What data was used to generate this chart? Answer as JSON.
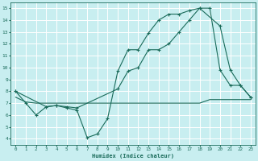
{
  "xlabel": "Humidex (Indice chaleur)",
  "bg_color": "#c8eef0",
  "line_color": "#1a6b5a",
  "grid_color": "#ffffff",
  "xlim": [
    -0.5,
    23.5
  ],
  "ylim": [
    3.5,
    15.5
  ],
  "xticks": [
    0,
    1,
    2,
    3,
    4,
    5,
    6,
    7,
    8,
    9,
    10,
    11,
    12,
    13,
    14,
    15,
    16,
    17,
    18,
    19,
    20,
    21,
    22,
    23
  ],
  "yticks": [
    4,
    5,
    6,
    7,
    8,
    9,
    10,
    11,
    12,
    13,
    14,
    15
  ],
  "line1_x": [
    0,
    1,
    2,
    3,
    4,
    5,
    6,
    7,
    8,
    9,
    10,
    11,
    12,
    13,
    14,
    15,
    16,
    17,
    18,
    19,
    20,
    21,
    22,
    23
  ],
  "line1_y": [
    8.0,
    7.0,
    6.0,
    6.7,
    6.8,
    6.6,
    6.4,
    4.1,
    4.4,
    5.7,
    9.7,
    11.5,
    11.5,
    12.9,
    14.0,
    14.5,
    14.5,
    14.8,
    15.0,
    15.0,
    9.8,
    8.5,
    8.5,
    7.5
  ],
  "line2_x": [
    0,
    1,
    2,
    3,
    4,
    5,
    6,
    7,
    8,
    9,
    10,
    11,
    12,
    13,
    14,
    15,
    16,
    17,
    18,
    19,
    20,
    21,
    22,
    23
  ],
  "line2_y": [
    7.5,
    7.1,
    7.0,
    7.0,
    7.0,
    7.0,
    7.0,
    7.0,
    7.0,
    7.0,
    7.0,
    7.0,
    7.0,
    7.0,
    7.0,
    7.0,
    7.0,
    7.0,
    7.0,
    7.3,
    7.3,
    7.3,
    7.3,
    7.3
  ],
  "line3_x": [
    0,
    3,
    4,
    5,
    6,
    10,
    11,
    12,
    13,
    14,
    15,
    16,
    17,
    18,
    20,
    21,
    22,
    23
  ],
  "line3_y": [
    8.0,
    6.7,
    6.8,
    6.7,
    6.6,
    8.2,
    9.7,
    10.0,
    11.5,
    11.5,
    12.0,
    13.0,
    14.0,
    15.0,
    13.5,
    9.8,
    8.5,
    7.5
  ]
}
